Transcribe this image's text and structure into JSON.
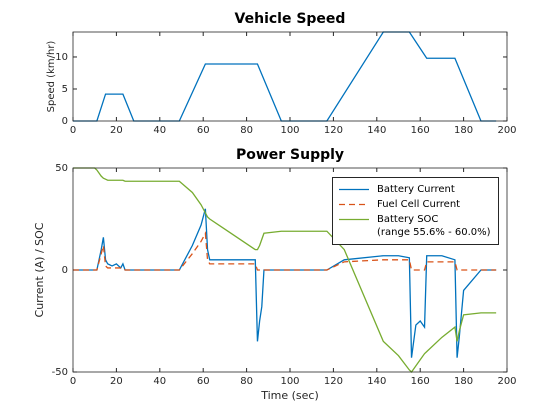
{
  "chart_data": [
    {
      "type": "line",
      "title": "Vehicle Speed",
      "ylabel": "Speed (km/hr)",
      "xlim": [
        0,
        200
      ],
      "ylim": [
        0,
        13.9
      ],
      "xticks": [
        0,
        20,
        40,
        60,
        80,
        100,
        120,
        140,
        160,
        180,
        200
      ],
      "yticks": [
        0,
        5,
        10
      ],
      "x": [
        0,
        11,
        15,
        23,
        28,
        49,
        61,
        85,
        96,
        117,
        143,
        155,
        163,
        176,
        188,
        195
      ],
      "series": [
        {
          "color": "#0072BD",
          "values": [
            0,
            0,
            4.2,
            4.2,
            0,
            0,
            8.9,
            8.9,
            0,
            0,
            13.9,
            13.9,
            9.8,
            9.8,
            0,
            0
          ]
        }
      ]
    },
    {
      "type": "line",
      "title": "Power Supply",
      "xlabel": "Time (sec)",
      "ylabel": "Current (A) / SOC",
      "xlim": [
        0,
        200
      ],
      "ylim": [
        -50,
        50
      ],
      "xticks": [
        0,
        20,
        40,
        60,
        80,
        100,
        120,
        140,
        160,
        180,
        200
      ],
      "yticks": [
        -50,
        0,
        50
      ],
      "legend": "northeast",
      "x": [
        0,
        10,
        11,
        13,
        14,
        15,
        16,
        18,
        20,
        22,
        23,
        24,
        28,
        49,
        55,
        59,
        61,
        62,
        63,
        70,
        84,
        85,
        86,
        87,
        88,
        96,
        117,
        125,
        143,
        150,
        155,
        156,
        158,
        160,
        162,
        163,
        170,
        176,
        177,
        178,
        180,
        188,
        195
      ],
      "series": [
        {
          "name": "Battery Current",
          "color": "#0072BD",
          "line_style": "solid",
          "values": [
            0,
            0,
            0,
            10,
            16,
            5,
            3,
            2,
            3,
            1,
            3,
            0,
            0,
            0,
            12,
            22,
            30,
            10,
            5,
            5,
            5,
            -35,
            -25,
            -18,
            0,
            0,
            0,
            5,
            7,
            7,
            6,
            -43,
            -27,
            -25,
            -28,
            7,
            7,
            5,
            -43,
            -33,
            -10,
            0,
            0
          ]
        },
        {
          "name": "Fuel Cell Current",
          "color": "#D95319",
          "line_style": "dashed",
          "values": [
            0,
            0,
            0,
            8,
            12,
            2,
            1,
            1,
            1,
            1,
            1,
            0,
            0,
            0,
            8,
            14,
            18,
            5,
            3,
            3,
            3,
            0,
            0,
            0,
            0,
            0,
            0,
            4,
            5,
            5,
            5,
            0,
            0,
            0,
            0,
            4,
            4,
            4,
            0,
            0,
            0,
            0,
            0
          ]
        },
        {
          "name": "Battery SOC\n(range 55.6% - 60.0%)",
          "color": "#77AC30",
          "line_style": "solid",
          "values": [
            50,
            50,
            49,
            46,
            45,
            44.5,
            44,
            44,
            44,
            44,
            44,
            43.5,
            43.5,
            43.5,
            38,
            32,
            28,
            26,
            25,
            20,
            10,
            10,
            12,
            15,
            18,
            19,
            19,
            10,
            -35,
            -42,
            -49,
            -50,
            -47,
            -44,
            -41,
            -40,
            -33,
            -28,
            -35,
            -30,
            -22,
            -21,
            -21
          ]
        }
      ]
    }
  ]
}
